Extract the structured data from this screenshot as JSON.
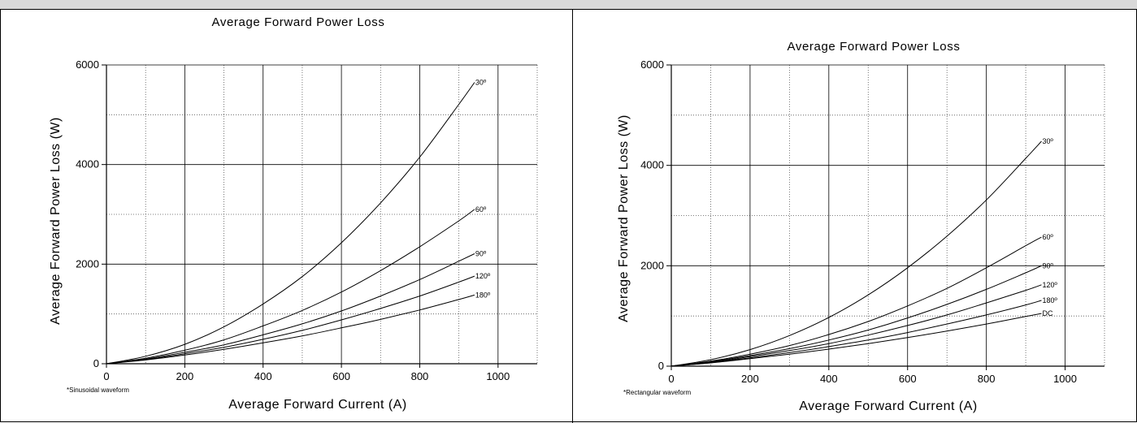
{
  "chart_data": [
    {
      "type": "line",
      "title": "Average Forward Power Loss",
      "xlabel": "Average Forward Current (A)",
      "ylabel": "Average Forward Power Loss (W)",
      "note": "*Sinusoidal waveform",
      "xlim": [
        0,
        1100
      ],
      "ylim": [
        0,
        6000
      ],
      "xticks": [
        0,
        200,
        400,
        600,
        800,
        1000
      ],
      "yticks": [
        0,
        2000,
        4000,
        6000
      ],
      "grid": true,
      "series": [
        {
          "name": "30º",
          "x": [
            0,
            100,
            200,
            300,
            400,
            500,
            600,
            700,
            800,
            900,
            940
          ],
          "y": [
            0,
            150,
            390,
            740,
            1200,
            1750,
            2430,
            3230,
            4150,
            5210,
            5650
          ]
        },
        {
          "name": "60º",
          "x": [
            0,
            100,
            200,
            300,
            400,
            500,
            600,
            700,
            800,
            900,
            940
          ],
          "y": [
            0,
            110,
            270,
            480,
            760,
            1070,
            1440,
            1870,
            2350,
            2870,
            3100
          ]
        },
        {
          "name": "90º",
          "x": [
            0,
            100,
            200,
            300,
            400,
            500,
            600,
            700,
            800,
            900,
            940
          ],
          "y": [
            0,
            95,
            230,
            380,
            580,
            800,
            1060,
            1360,
            1690,
            2060,
            2210
          ]
        },
        {
          "name": "120º",
          "x": [
            0,
            100,
            200,
            300,
            400,
            500,
            600,
            700,
            800,
            900,
            940
          ],
          "y": [
            0,
            85,
            200,
            330,
            490,
            670,
            880,
            1110,
            1360,
            1640,
            1760
          ]
        },
        {
          "name": "180º",
          "x": [
            0,
            100,
            200,
            300,
            400,
            500,
            600,
            700,
            800,
            900,
            940
          ],
          "y": [
            0,
            75,
            175,
            290,
            420,
            560,
            720,
            890,
            1080,
            1290,
            1380
          ]
        }
      ]
    },
    {
      "type": "line",
      "title": "Average Forward Power Loss",
      "xlabel": "Average Forward Current (A)",
      "ylabel": "Average Forward Power Loss (W)",
      "note": "*Rectangular waveform",
      "xlim": [
        0,
        1100
      ],
      "ylim": [
        0,
        6000
      ],
      "xticks": [
        0,
        200,
        400,
        600,
        800,
        1000
      ],
      "yticks": [
        0,
        2000,
        4000,
        6000
      ],
      "grid": true,
      "series": [
        {
          "name": "30º",
          "x": [
            0,
            100,
            200,
            300,
            400,
            500,
            600,
            700,
            800,
            900,
            940
          ],
          "y": [
            0,
            130,
            330,
            610,
            970,
            1420,
            1960,
            2590,
            3310,
            4140,
            4480
          ]
        },
        {
          "name": "60º",
          "x": [
            0,
            100,
            200,
            300,
            400,
            500,
            600,
            700,
            800,
            900,
            940
          ],
          "y": [
            0,
            100,
            240,
            410,
            630,
            890,
            1200,
            1550,
            1960,
            2400,
            2570
          ]
        },
        {
          "name": "90º",
          "x": [
            0,
            100,
            200,
            300,
            400,
            500,
            600,
            700,
            800,
            900,
            940
          ],
          "y": [
            0,
            90,
            210,
            350,
            520,
            720,
            960,
            1230,
            1530,
            1860,
            2000
          ]
        },
        {
          "name": "120º",
          "x": [
            0,
            100,
            200,
            300,
            400,
            500,
            600,
            700,
            800,
            900,
            940
          ],
          "y": [
            0,
            80,
            190,
            310,
            450,
            620,
            810,
            1020,
            1260,
            1510,
            1620
          ]
        },
        {
          "name": "180º",
          "x": [
            0,
            100,
            200,
            300,
            400,
            500,
            600,
            700,
            800,
            900,
            940
          ],
          "y": [
            0,
            70,
            165,
            270,
            390,
            520,
            670,
            840,
            1020,
            1220,
            1310
          ]
        },
        {
          "name": "DC",
          "x": [
            0,
            100,
            200,
            300,
            400,
            500,
            600,
            700,
            800,
            900,
            940
          ],
          "y": [
            0,
            65,
            150,
            240,
            340,
            450,
            570,
            700,
            840,
            990,
            1050
          ]
        }
      ]
    }
  ]
}
